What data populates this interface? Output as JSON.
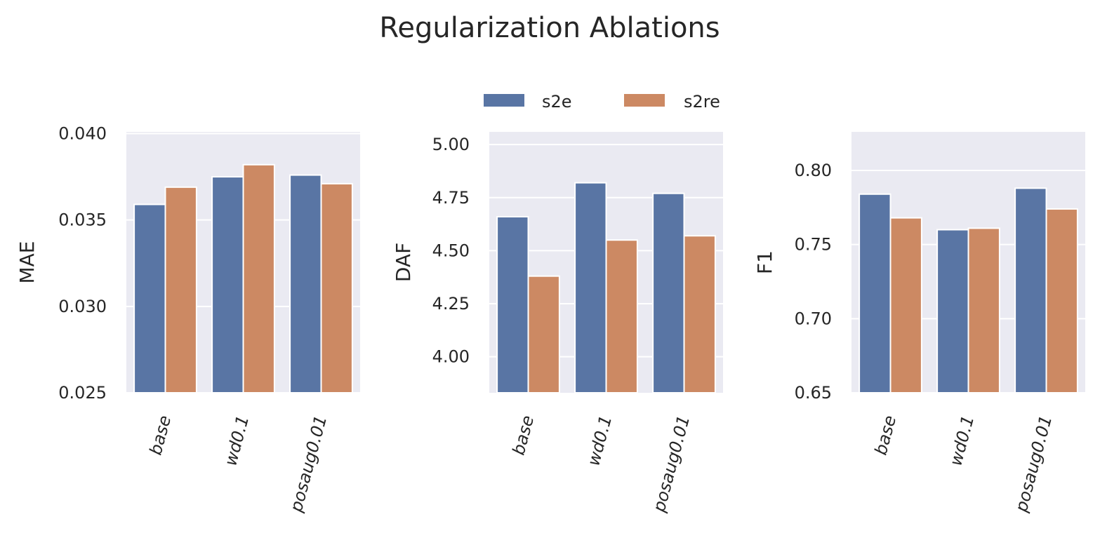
{
  "figure": {
    "title": "Regularization Ablations"
  },
  "legend": {
    "entries": [
      {
        "label": "s2e",
        "color": "#5975a4"
      },
      {
        "label": "s2re",
        "color": "#cc8963"
      }
    ],
    "placement": "top-center"
  },
  "colors": {
    "axes_background": "#eaeaf2",
    "grid": "#ffffff",
    "text": "#262626"
  },
  "chart_data": [
    {
      "type": "bar",
      "title": "",
      "xlabel": "",
      "ylabel": "MAE",
      "categories": [
        "base",
        "wd0.1",
        "posaug0.01"
      ],
      "series": [
        {
          "name": "s2e",
          "values": [
            0.0359,
            0.0375,
            0.0376
          ]
        },
        {
          "name": "s2re",
          "values": [
            0.0369,
            0.0382,
            0.0371
          ]
        }
      ],
      "ylim": [
        0.025,
        0.0401
      ],
      "yticks": [
        0.025,
        0.03,
        0.035,
        0.04
      ],
      "ytick_labels": [
        "0.025",
        "0.030",
        "0.035",
        "0.040"
      ],
      "grid": true
    },
    {
      "type": "bar",
      "title": "",
      "xlabel": "",
      "ylabel": "DAF",
      "categories": [
        "base",
        "wd0.1",
        "posaug0.01"
      ],
      "series": [
        {
          "name": "s2e",
          "values": [
            4.66,
            4.82,
            4.77
          ]
        },
        {
          "name": "s2re",
          "values": [
            4.38,
            4.55,
            4.57
          ]
        }
      ],
      "ylim": [
        3.83,
        5.06
      ],
      "yticks": [
        4.0,
        4.25,
        4.5,
        4.75,
        5.0
      ],
      "ytick_labels": [
        "4.00",
        "4.25",
        "4.50",
        "4.75",
        "5.00"
      ],
      "grid": true
    },
    {
      "type": "bar",
      "title": "",
      "xlabel": "",
      "ylabel": "F1",
      "categories": [
        "base",
        "wd0.1",
        "posaug0.01"
      ],
      "series": [
        {
          "name": "s2e",
          "values": [
            0.784,
            0.76,
            0.788
          ]
        },
        {
          "name": "s2re",
          "values": [
            0.768,
            0.761,
            0.774
          ]
        }
      ],
      "ylim": [
        0.65,
        0.826
      ],
      "yticks": [
        0.65,
        0.7,
        0.75,
        0.8
      ],
      "ytick_labels": [
        "0.65",
        "0.70",
        "0.75",
        "0.80"
      ],
      "grid": true
    }
  ]
}
